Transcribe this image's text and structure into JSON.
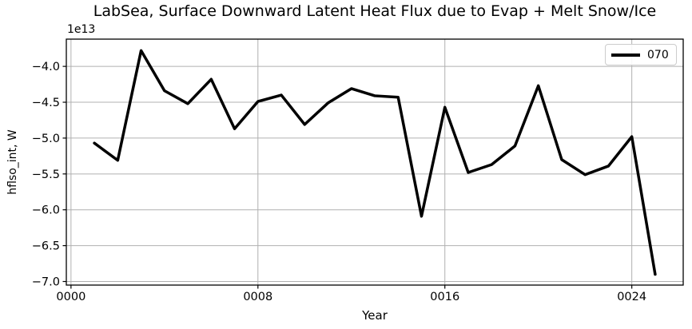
{
  "chart_data": {
    "type": "line",
    "title": "LabSea, Surface Downward Latent Heat Flux due to Evap + Melt Snow/Ice",
    "xlabel": "Year",
    "ylabel": "hflso_int, W",
    "y_offset_text": "1e13",
    "y_scale_note": "values are in units of 1e13 W",
    "grid": true,
    "grid_color": "#b0b0b0",
    "line_color": "#000000",
    "background_color": "#ffffff",
    "legend_position": "upper right",
    "xlim": [
      -0.2,
      26.2
    ],
    "ylim": [
      -7.05,
      -3.62
    ],
    "x": [
      1,
      2,
      3,
      4,
      5,
      6,
      7,
      8,
      9,
      10,
      11,
      12,
      13,
      14,
      15,
      16,
      17,
      18,
      19,
      20,
      21,
      22,
      23,
      24,
      25
    ],
    "series": [
      {
        "name": "070",
        "color": "#000000",
        "values": [
          -5.07,
          -5.31,
          -3.78,
          -4.34,
          -4.52,
          -4.18,
          -4.87,
          -4.49,
          -4.4,
          -4.81,
          -4.51,
          -4.31,
          -4.41,
          -4.43,
          -6.09,
          -4.57,
          -5.48,
          -5.37,
          -5.11,
          -4.27,
          -5.3,
          -5.51,
          -5.39,
          -4.98,
          -6.9
        ]
      }
    ],
    "x_ticks": [
      {
        "value": 0,
        "label": "0000"
      },
      {
        "value": 8,
        "label": "0008"
      },
      {
        "value": 16,
        "label": "0016"
      },
      {
        "value": 24,
        "label": "0024"
      }
    ],
    "y_ticks": [
      {
        "value": -4.0,
        "label": "−4.0"
      },
      {
        "value": -4.5,
        "label": "−4.5"
      },
      {
        "value": -5.0,
        "label": "−5.0"
      },
      {
        "value": -5.5,
        "label": "−5.5"
      },
      {
        "value": -6.0,
        "label": "−6.0"
      },
      {
        "value": -6.5,
        "label": "−6.5"
      },
      {
        "value": -7.0,
        "label": "−7.0"
      }
    ]
  }
}
